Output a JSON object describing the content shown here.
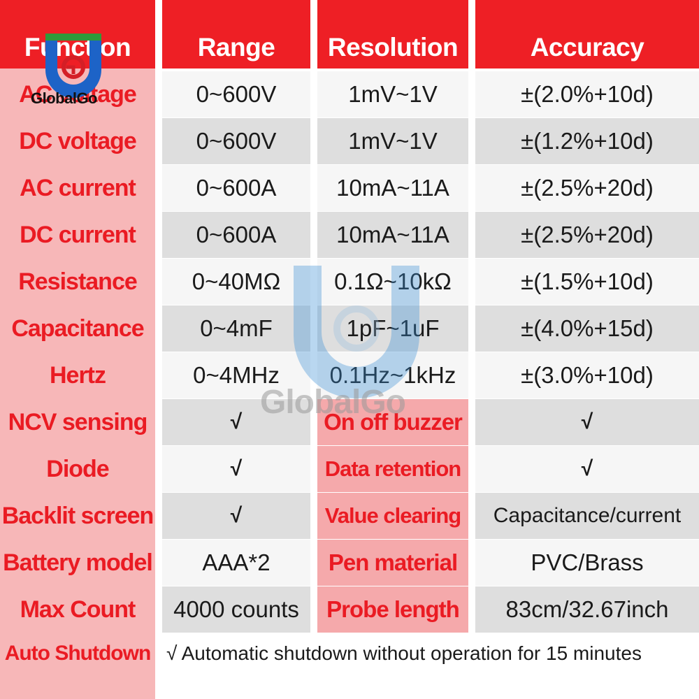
{
  "header": {
    "function": "Function",
    "range": "Range",
    "resolution": "Resolution",
    "accuracy": "Accuracy"
  },
  "rows": [
    {
      "function": "AC voltage",
      "range": "0~600V",
      "resolution": "1mV~1V",
      "accuracy": "±(2.0%+10d)"
    },
    {
      "function": "DC voltage",
      "range": "0~600V",
      "resolution": "1mV~1V",
      "accuracy": "±(1.2%+10d)"
    },
    {
      "function": "AC current",
      "range": "0~600A",
      "resolution": "10mA~11A",
      "accuracy": "±(2.5%+20d)"
    },
    {
      "function": "DC current",
      "range": "0~600A",
      "resolution": "10mA~11A",
      "accuracy": "±(2.5%+20d)"
    },
    {
      "function": "Resistance",
      "range": "0~40MΩ",
      "resolution": "0.1Ω~10kΩ",
      "accuracy": "±(1.5%+10d)"
    },
    {
      "function": "Capacitance",
      "range": "0~4mF",
      "resolution": "1pF~1uF",
      "accuracy": "±(4.0%+15d)"
    },
    {
      "function": "Hertz",
      "range": "0~4MHz",
      "resolution": "0.1Hz~1kHz",
      "accuracy": "±(3.0%+10d)"
    }
  ],
  "features": [
    {
      "function": "NCV sensing",
      "value": "√",
      "feature2": "On off buzzer",
      "value2": "√"
    },
    {
      "function": "Diode",
      "value": "√",
      "feature2": "Data retention",
      "value2": "√"
    },
    {
      "function": "Backlit screen",
      "value": "√",
      "feature2": "Value clearing",
      "value2": "Capacitance/current"
    },
    {
      "function": "Battery model",
      "value": "AAA*2",
      "feature2": "Pen material",
      "value2": "PVC/Brass"
    },
    {
      "function": "Max Count",
      "value": "4000 counts",
      "feature2": "Probe length",
      "value2": "83cm/32.67inch"
    }
  ],
  "auto_shutdown": {
    "function": "Auto Shutdown",
    "value": "√ Automatic shutdown without operation for 15 minutes"
  },
  "logo": {
    "text": "GlobalGo"
  },
  "watermark": {
    "text": "GlobalGo"
  },
  "colors": {
    "red": "#ee1f25",
    "pink": "#f5a9ab",
    "grey": "#dedede"
  }
}
